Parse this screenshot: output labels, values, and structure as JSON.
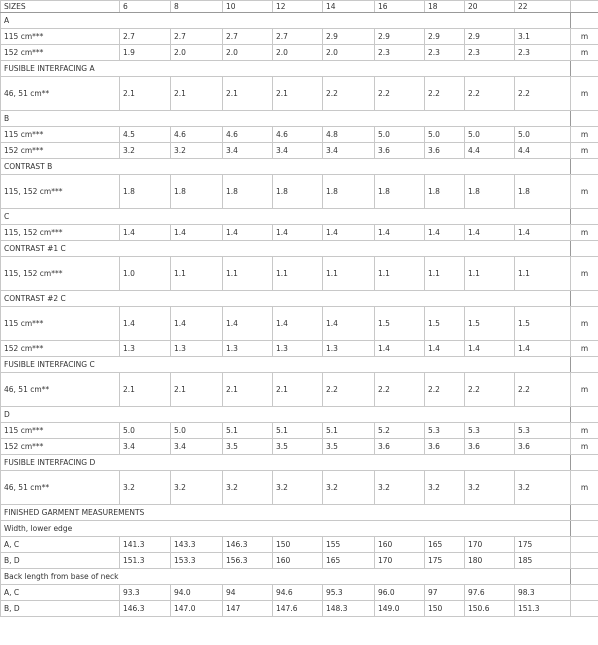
{
  "header": [
    "SIZES",
    "6",
    "8",
    "10",
    "12",
    "14",
    "16",
    "18",
    "20",
    "22"
  ],
  "rows": [
    {
      "label": "A"
    },
    {
      "label": "115 cm***",
      "values": [
        "2.7",
        "2.7",
        "2.7",
        "2.7",
        "2.9",
        "2.9",
        "2.9",
        "2.9",
        "3.1"
      ],
      "unit": "m"
    },
    {
      "label": "152 cm***",
      "values": [
        "1.9",
        "2.0",
        "2.0",
        "2.0",
        "2.0",
        "2.3",
        "2.3",
        "2.3",
        "2.3"
      ],
      "unit": "m"
    },
    {
      "label": "FUSIBLE INTERFACING A"
    },
    {
      "label": "46, 51 cm**",
      "values": [
        "2.1",
        "2.1",
        "2.1",
        "2.1",
        "2.2",
        "2.2",
        "2.2",
        "2.2",
        "2.2"
      ],
      "unit": "m"
    },
    {
      "label": "B"
    },
    {
      "label": "115 cm***",
      "values": [
        "4.5",
        "4.6",
        "4.6",
        "4.6",
        "4.8",
        "5.0",
        "5.0",
        "5.0",
        "5.0"
      ],
      "unit": "m"
    },
    {
      "label": "152 cm***",
      "values": [
        "3.2",
        "3.2",
        "3.4",
        "3.4",
        "3.4",
        "3.6",
        "3.6",
        "4.4",
        "4.4"
      ],
      "unit": "m"
    },
    {
      "label": "CONTRAST B"
    },
    {
      "label": "115, 152 cm***",
      "values": [
        "1.8",
        "1.8",
        "1.8",
        "1.8",
        "1.8",
        "1.8",
        "1.8",
        "1.8",
        "1.8"
      ],
      "unit": "m"
    },
    {
      "label": "C"
    },
    {
      "label": "115, 152 cm***",
      "values": [
        "1.4",
        "1.4",
        "1.4",
        "1.4",
        "1.4",
        "1.4",
        "1.4",
        "1.4",
        "1.4"
      ],
      "unit": "m"
    },
    {
      "label": "CONTRAST #1 C"
    },
    {
      "label": "115, 152 cm***",
      "values": [
        "1.0",
        "1.1",
        "1.1",
        "1.1",
        "1.1",
        "1.1",
        "1.1",
        "1.1",
        "1.1"
      ],
      "unit": "m"
    },
    {
      "label": "CONTRAST #2 C"
    },
    {
      "label": "115 cm***",
      "values": [
        "1.4",
        "1.4",
        "1.4",
        "1.4",
        "1.4",
        "1.5",
        "1.5",
        "1.5",
        "1.5"
      ],
      "unit": "m"
    },
    {
      "label": "152 cm***",
      "values": [
        "1.3",
        "1.3",
        "1.3",
        "1.3",
        "1.3",
        "1.4",
        "1.4",
        "1.4",
        "1.4"
      ],
      "unit": "m"
    },
    {
      "label": "FUSIBLE INTERFACING C"
    },
    {
      "label": "46, 51 cm**",
      "values": [
        "2.1",
        "2.1",
        "2.1",
        "2.1",
        "2.2",
        "2.2",
        "2.2",
        "2.2",
        "2.2"
      ],
      "unit": "m"
    },
    {
      "label": "D"
    },
    {
      "label": "115 cm***",
      "values": [
        "5.0",
        "5.0",
        "5.1",
        "5.1",
        "5.1",
        "5.2",
        "5.3",
        "5.3",
        "5.3"
      ],
      "unit": "m"
    },
    {
      "label": "152 cm***",
      "values": [
        "3.4",
        "3.4",
        "3.5",
        "3.5",
        "3.5",
        "3.6",
        "3.6",
        "3.6",
        "3.6"
      ],
      "unit": "m"
    },
    {
      "label": "FUSIBLE INTERFACING D"
    },
    {
      "label": "46, 51 cm**",
      "values": [
        "3.2",
        "3.2",
        "3.2",
        "3.2",
        "3.2",
        "3.2",
        "3.2",
        "3.2",
        "3.2"
      ],
      "unit": "m"
    },
    {
      "label": "FINISHED GARMENT MEASUREMENTS"
    },
    {
      "label": "Width, lower edge"
    },
    {
      "label": "A, C",
      "values": [
        "141.3",
        "143.3",
        "146.3",
        "150",
        "155",
        "160",
        "165",
        "170",
        "175"
      ]
    },
    {
      "label": "B, D",
      "values": [
        "151.3",
        "153.3",
        "156.3",
        "160",
        "165",
        "170",
        "175",
        "180",
        "185"
      ]
    },
    {
      "label": "Back length from base of neck"
    },
    {
      "label": "A, C",
      "values": [
        "93.3",
        "94.0",
        "94",
        "94.6",
        "95.3",
        "96.0",
        "97",
        "97.6",
        "98.3"
      ]
    },
    {
      "label": "B, D",
      "values": [
        "146.3",
        "147.0",
        "147",
        "147.6",
        "148.3",
        "149.0",
        "150",
        "150.6",
        "151.3"
      ]
    }
  ]
}
